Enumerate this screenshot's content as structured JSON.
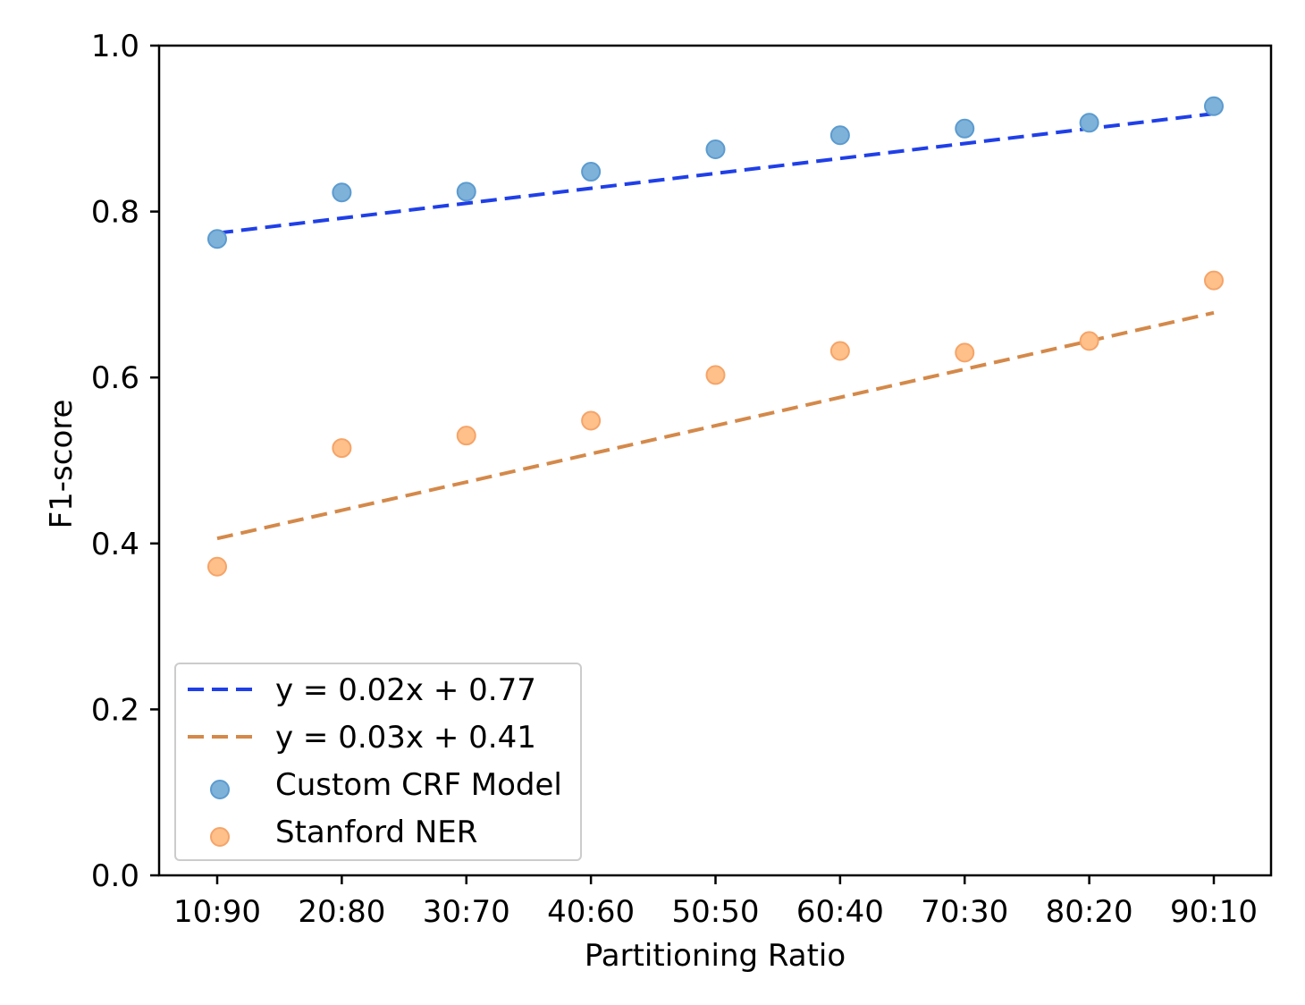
{
  "chart_data": {
    "type": "scatter",
    "categories": [
      "10:90",
      "20:80",
      "30:70",
      "40:60",
      "50:50",
      "60:40",
      "70:30",
      "80:20",
      "90:10"
    ],
    "xlabel": "Partitioning Ratio",
    "ylabel": "F1-score",
    "ylim": [
      0,
      1.0
    ],
    "yticks": [
      "0.0",
      "0.2",
      "0.4",
      "0.6",
      "0.8",
      "1.0"
    ],
    "grid": false,
    "legend_position": "lower-left",
    "series": [
      {
        "name": "Custom CRF Model",
        "kind": "scatter",
        "color": "#7fb2d9",
        "edge_color": "#5b9bd0",
        "values": [
          0.767,
          0.823,
          0.824,
          0.848,
          0.875,
          0.892,
          0.9,
          0.907,
          0.927
        ]
      },
      {
        "name": "Stanford NER",
        "kind": "scatter",
        "color": "#ffc08a",
        "edge_color": "#f5a468",
        "values": [
          0.372,
          0.515,
          0.53,
          0.548,
          0.603,
          0.632,
          0.63,
          0.644,
          0.717
        ]
      },
      {
        "name": "y = 0.02x + 0.77",
        "kind": "trend-line",
        "color": "#1f3fe8",
        "slope": 0.018,
        "intercept": 0.774
      },
      {
        "name": "y = 0.03x + 0.41",
        "kind": "trend-line",
        "color": "#d4894a",
        "slope": 0.034,
        "intercept": 0.406
      }
    ]
  }
}
